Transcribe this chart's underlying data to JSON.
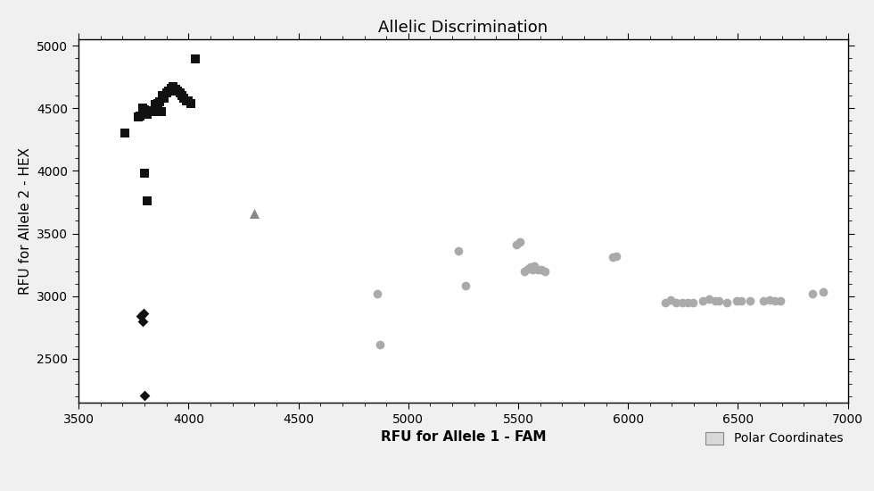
{
  "title": "Allelic Discrimination",
  "xlabel": "RFU for Allele 1 - FAM",
  "ylabel": "RFU for Allele 2 - HEX",
  "xlim": [
    3500,
    7000
  ],
  "ylim": [
    2150,
    5050
  ],
  "xticks": [
    3500,
    4000,
    4500,
    5000,
    5500,
    6000,
    6500,
    7000
  ],
  "yticks": [
    2500,
    3000,
    3500,
    4000,
    4500,
    5000
  ],
  "plot_background": "#ffffff",
  "fig_background": "#f0f0f0",
  "squares_black": [
    [
      3710,
      4300
    ],
    [
      3770,
      4430
    ],
    [
      3780,
      4440
    ],
    [
      3790,
      4500
    ],
    [
      3800,
      4490
    ],
    [
      3810,
      4450
    ],
    [
      3820,
      4480
    ],
    [
      3830,
      4480
    ],
    [
      3840,
      4470
    ],
    [
      3850,
      4530
    ],
    [
      3860,
      4540
    ],
    [
      3870,
      4550
    ],
    [
      3875,
      4470
    ],
    [
      3880,
      4600
    ],
    [
      3890,
      4580
    ],
    [
      3900,
      4620
    ],
    [
      3910,
      4640
    ],
    [
      3920,
      4660
    ],
    [
      3930,
      4670
    ],
    [
      3940,
      4650
    ],
    [
      3950,
      4640
    ],
    [
      3960,
      4620
    ],
    [
      3970,
      4600
    ],
    [
      3980,
      4580
    ],
    [
      3990,
      4560
    ],
    [
      4000,
      4560
    ],
    [
      4010,
      4540
    ],
    [
      4030,
      4890
    ],
    [
      3800,
      3980
    ],
    [
      3810,
      3760
    ]
  ],
  "triangle_gray": [
    [
      4300,
      3660
    ]
  ],
  "diamonds_black": [
    [
      3785,
      2840
    ],
    [
      3795,
      2860
    ],
    [
      3790,
      2800
    ],
    [
      3800,
      2210
    ]
  ],
  "circles_gray": [
    [
      4860,
      3020
    ],
    [
      4870,
      2610
    ],
    [
      5230,
      3360
    ],
    [
      5260,
      3080
    ],
    [
      5490,
      3410
    ],
    [
      5510,
      3430
    ],
    [
      5530,
      3200
    ],
    [
      5545,
      3220
    ],
    [
      5555,
      3230
    ],
    [
      5565,
      3210
    ],
    [
      5575,
      3240
    ],
    [
      5590,
      3210
    ],
    [
      5605,
      3210
    ],
    [
      5620,
      3200
    ],
    [
      5930,
      3310
    ],
    [
      5945,
      3315
    ],
    [
      6170,
      2950
    ],
    [
      6195,
      2970
    ],
    [
      6220,
      2950
    ],
    [
      6245,
      2945
    ],
    [
      6270,
      2945
    ],
    [
      6295,
      2950
    ],
    [
      6340,
      2960
    ],
    [
      6370,
      2975
    ],
    [
      6395,
      2960
    ],
    [
      6415,
      2960
    ],
    [
      6450,
      2950
    ],
    [
      6495,
      2960
    ],
    [
      6515,
      2960
    ],
    [
      6555,
      2960
    ],
    [
      6615,
      2960
    ],
    [
      6645,
      2970
    ],
    [
      6670,
      2960
    ],
    [
      6695,
      2965
    ],
    [
      6840,
      3020
    ],
    [
      6890,
      3030
    ]
  ],
  "legend_label": "Polar Coordinates",
  "legend_box_color": "#d8d8d8",
  "marker_size_square": 7,
  "marker_size_circle": 7,
  "marker_size_triangle": 8,
  "marker_size_diamond": 6,
  "square_color": "#111111",
  "circle_color": "#aaaaaa",
  "triangle_color": "#888888",
  "diamond_color": "#111111",
  "title_fontsize": 13,
  "axis_fontsize": 11,
  "tick_fontsize": 10
}
